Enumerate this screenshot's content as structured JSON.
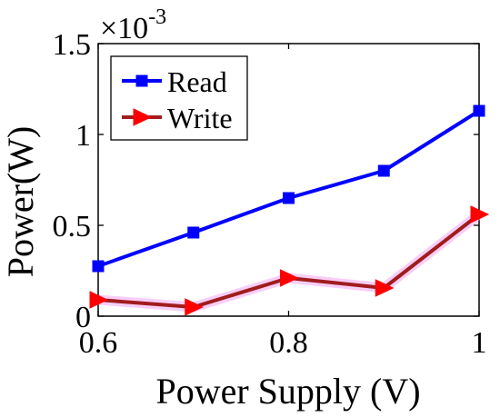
{
  "chart_data": {
    "type": "line",
    "xlabel": "Power Supply (V)",
    "ylabel": "Power(W)",
    "exponent_label": {
      "base": "×10",
      "power": "-3"
    },
    "x_ticks": [
      "0.6",
      "0.8",
      "1"
    ],
    "x_tick_values": [
      0.6,
      0.8,
      1.0
    ],
    "y_ticks": [
      "0",
      "0.5",
      "1",
      "1.5"
    ],
    "y_tick_values": [
      0,
      0.5,
      1.0,
      1.5
    ],
    "xlim": [
      0.6,
      1.0
    ],
    "ylim": [
      0,
      1.5
    ],
    "y_scale_note": "values in units of 1e-3 W",
    "grid": false,
    "legend_position": "top-left",
    "series": [
      {
        "name": "Read",
        "color": "#0000ff",
        "marker": "square",
        "x": [
          0.6,
          0.7,
          0.8,
          0.9,
          1.0
        ],
        "y": [
          0.275,
          0.46,
          0.65,
          0.8,
          1.13
        ]
      },
      {
        "name": "Write",
        "color": "#ff0000",
        "line_color": "#a01d1d",
        "marker": "triangle-right",
        "x": [
          0.6,
          0.7,
          0.8,
          0.9,
          1.0
        ],
        "y": [
          0.09,
          0.05,
          0.21,
          0.155,
          0.56
        ]
      }
    ]
  }
}
